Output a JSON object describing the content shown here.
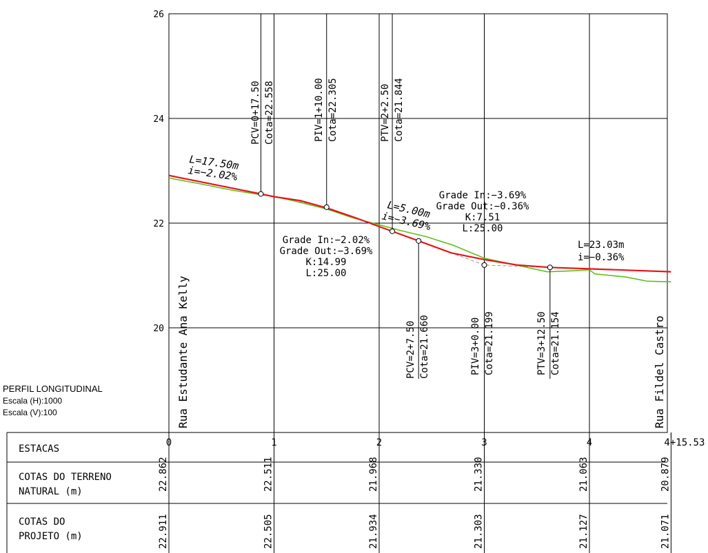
{
  "title_block": {
    "title": "PERFIL LONGITUDINAL",
    "scale_h": "Escala (H):1000",
    "scale_v": "Escala (V):100"
  },
  "colors": {
    "design_profile": "#e8141b",
    "terrain_profile": "#5fbf1a",
    "grid": "#000000",
    "tangent": "#9a9a9a"
  },
  "streets": {
    "start": "Rua Estudante Ana Kelly",
    "end": "Rua Fildel Castro"
  },
  "table": {
    "row_estacas": "ESTACAS",
    "row_terreno": [
      "COTAS DO TERRENO",
      "NATURAL (m)"
    ],
    "row_projeto": [
      "COTAS DO",
      "PROJETO (m)"
    ],
    "station_labels": [
      "0",
      "1",
      "2",
      "3",
      "4",
      "4+15.53"
    ],
    "terrain_values": [
      "22.862",
      "22.511",
      "21.968",
      "21.330",
      "21.063",
      "20.879"
    ],
    "project_values": [
      "22.911",
      "22.505",
      "21.934",
      "21.303",
      "21.127",
      "21.071"
    ]
  },
  "points": [
    {
      "name": "PCV=0+17.50",
      "cota": "Cota=22.558",
      "station": 0.875,
      "elev": 22.558,
      "side": "above"
    },
    {
      "name": "PIV=1+10.00",
      "cota": "Cota=22.305",
      "station": 1.5,
      "elev": 22.305,
      "side": "above"
    },
    {
      "name": "PTV=2+2.50",
      "cota": "Cota=21.844",
      "station": 2.125,
      "elev": 21.844,
      "side": "above"
    },
    {
      "name": "PCV=2+7.50",
      "cota": "Cota=21.660",
      "station": 2.375,
      "elev": 21.66,
      "side": "below"
    },
    {
      "name": "PIV=3+0.00",
      "cota": "Cota=21.199",
      "station": 3.0,
      "elev": 21.199,
      "side": "below"
    },
    {
      "name": "PTV=3+12.50",
      "cota": "Cota=21.154",
      "station": 3.625,
      "elev": 21.154,
      "side": "below"
    }
  ],
  "curves": [
    {
      "lines": [
        "Grade In:−2.02%",
        "Grade Out:−3.69%",
        "K:14.99",
        "L:25.00"
      ]
    },
    {
      "lines": [
        "Grade In:−3.69%",
        "Grade Out:−0.36%",
        "K:7.51",
        "L:25.00"
      ]
    }
  ],
  "tangents": [
    {
      "length": "L=17.50m",
      "slope": "i=−2.02%"
    },
    {
      "length": "L=5.00m",
      "slope": "i=−3.69%"
    },
    {
      "length": "L=23.03m",
      "slope": "i=−0.36%"
    }
  ],
  "axes": {
    "y_ticks": [
      "20",
      "22",
      "24",
      "26"
    ],
    "x_range": [
      0,
      4.7765
    ],
    "y_range": [
      18,
      26
    ]
  },
  "chart_data": {
    "type": "line",
    "title": "PERFIL LONGITUDINAL",
    "xlabel": "ESTACAS",
    "ylabel": "",
    "xlim": [
      0,
      4.7765
    ],
    "ylim": [
      18,
      26
    ],
    "series": [
      {
        "name": "COTAS DO PROJETO (m)",
        "x": [
          0,
          0.875,
          1,
          1.25,
          1.5,
          1.75,
          2,
          2.125,
          2.375,
          2.6875,
          3,
          3.3125,
          3.625,
          4,
          4.7765
        ],
        "y": [
          22.911,
          22.558,
          22.505,
          22.43,
          22.29,
          22.12,
          21.934,
          21.844,
          21.66,
          21.43,
          21.303,
          21.2,
          21.154,
          21.127,
          21.071
        ]
      },
      {
        "name": "COTAS DO TERRENO NATURAL (m)",
        "x": [
          0,
          0.3,
          0.6,
          0.85,
          1,
          1.2,
          1.5,
          1.75,
          2,
          2.2,
          2.45,
          2.7,
          3,
          3.3,
          3.6,
          3.85,
          4,
          4.05,
          4.2,
          4.35,
          4.45,
          4.55,
          4.7765
        ],
        "y": [
          22.862,
          22.75,
          22.63,
          22.55,
          22.511,
          22.42,
          22.27,
          22.1,
          21.968,
          21.86,
          21.74,
          21.58,
          21.33,
          21.2,
          21.07,
          21.09,
          21.11,
          21.03,
          21.0,
          20.97,
          20.93,
          20.89,
          20.879
        ]
      }
    ]
  }
}
